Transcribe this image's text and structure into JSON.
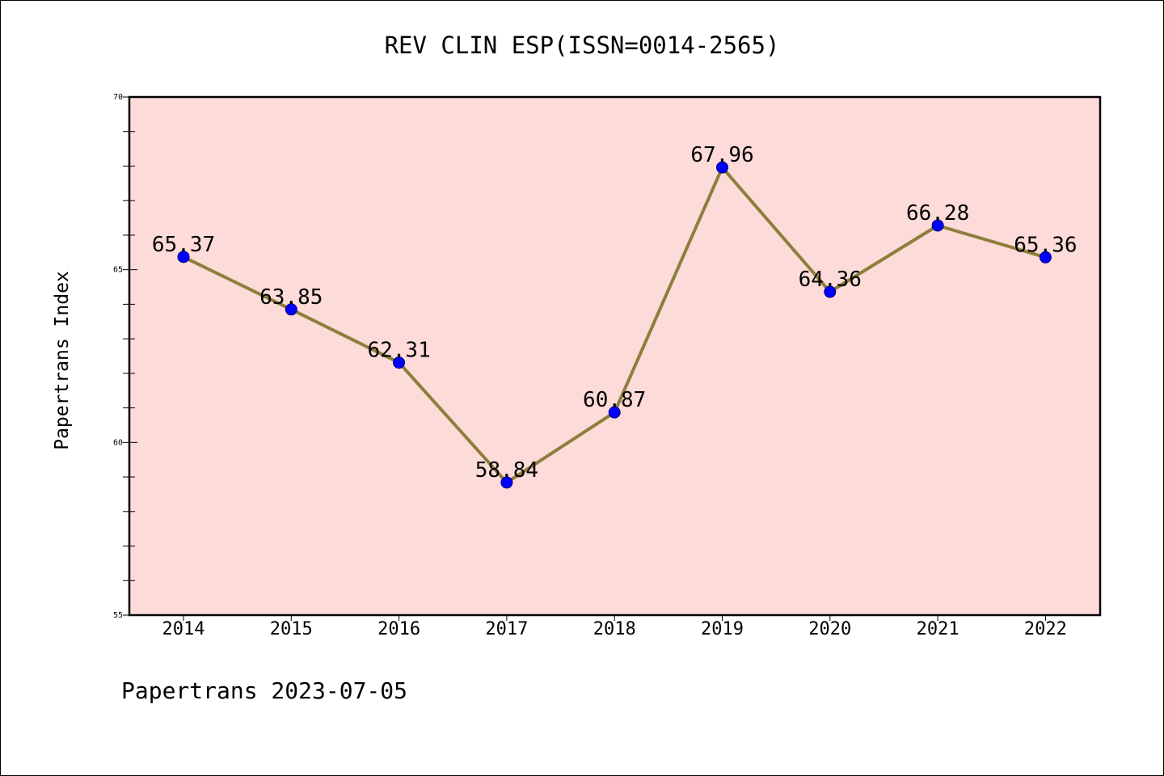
{
  "chart_data": {
    "type": "line",
    "title": "REV CLIN ESP(ISSN=0014-2565)",
    "ylabel": "Papertrans Index",
    "xlabel": "",
    "categories": [
      "2014",
      "2015",
      "2016",
      "2017",
      "2018",
      "2019",
      "2020",
      "2021",
      "2022"
    ],
    "series": [
      {
        "values": [
          65.37,
          63.85,
          62.31,
          58.84,
          60.87,
          67.96,
          64.36,
          66.28,
          65.36
        ]
      }
    ],
    "data_labels": [
      "65.37",
      "63.85",
      "62.31",
      "58.84",
      "60.87",
      "67.96",
      "64.36",
      "66.28",
      "65.36"
    ],
    "ylim": [
      55,
      70
    ],
    "y_major_ticks": [
      55,
      60,
      65,
      70
    ],
    "y_minor_step": 1,
    "y_tick_labels": [
      "55",
      "60",
      "65",
      "70"
    ],
    "grid": false,
    "legend": "none",
    "colors": {
      "plot_background": "#fddbd9",
      "line": "#8c7f3c",
      "marker": "#0000ff",
      "marker_edge": "#00007a"
    },
    "footer": "Papertrans 2023-07-05"
  }
}
